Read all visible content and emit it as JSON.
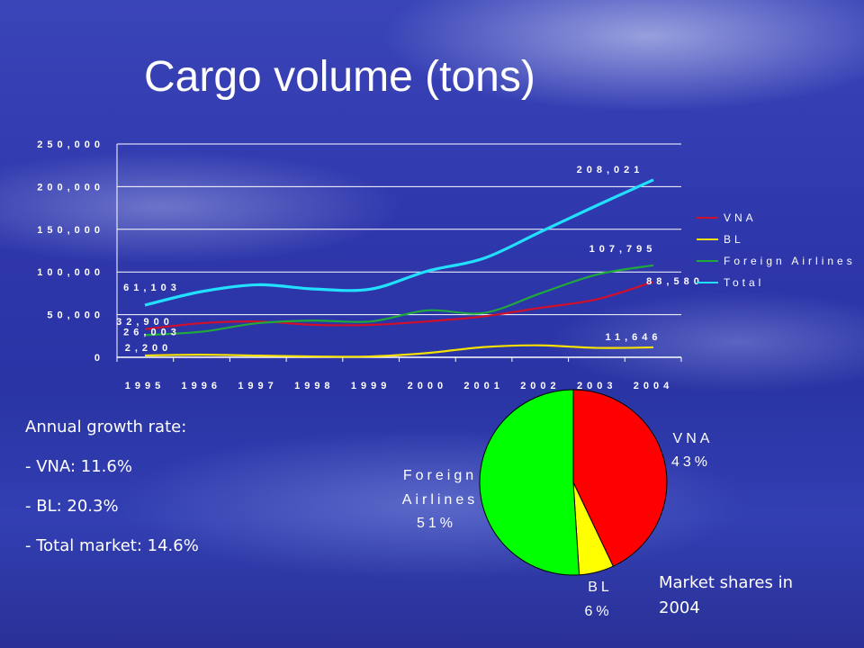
{
  "slide": {
    "title": "Cargo volume (tons)",
    "growth_title": "Annual growth rate:",
    "growth_items": [
      "- VNA: 11.6%",
      "- BL: 20.3%",
      "- Total market: 14.6%"
    ],
    "pie_caption": "Market shares in 2004"
  },
  "chart_data": [
    {
      "type": "line",
      "title": "",
      "xlabel": "",
      "ylabel": "",
      "ylim": [
        0,
        250000
      ],
      "yticks": [
        "250,000",
        "200,000",
        "150,000",
        "100,000",
        "50,000",
        "0"
      ],
      "categories": [
        "1995",
        "1996",
        "1997",
        "1998",
        "1999",
        "2000",
        "2001",
        "2002",
        "2003",
        "2004"
      ],
      "grid": true,
      "legend_position": "right",
      "series": [
        {
          "name": "VNA",
          "color": "#d0102a",
          "values": [
            32900,
            40000,
            42000,
            38000,
            38000,
            42000,
            48000,
            58000,
            68000,
            88580
          ]
        },
        {
          "name": "BL",
          "color": "#f5e000",
          "values": [
            2200,
            3000,
            2000,
            1000,
            1000,
            5000,
            12000,
            14000,
            11000,
            11646
          ]
        },
        {
          "name": "Foreign Airlines",
          "color": "#1faa3a",
          "values": [
            26003,
            30000,
            40000,
            43000,
            42000,
            55000,
            52000,
            75000,
            97000,
            107795
          ]
        },
        {
          "name": "Total",
          "color": "#22e0ff",
          "values": [
            61103,
            77000,
            85000,
            80000,
            80000,
            101000,
            116000,
            147000,
            178000,
            208021
          ]
        }
      ],
      "data_labels": [
        {
          "series": "VNA",
          "category": "1995",
          "text": "32,900"
        },
        {
          "series": "VNA",
          "category": "2004",
          "text": "88,580"
        },
        {
          "series": "BL",
          "category": "1995",
          "text": "2,200"
        },
        {
          "series": "BL",
          "category": "2004",
          "text": "11,646"
        },
        {
          "series": "Foreign Airlines",
          "category": "1995",
          "text": "26,003"
        },
        {
          "series": "Foreign Airlines",
          "category": "2004",
          "text": "107,795"
        },
        {
          "series": "Total",
          "category": "1995",
          "text": "61,103"
        },
        {
          "series": "Total",
          "category": "2004",
          "text": "208,021"
        }
      ]
    },
    {
      "type": "pie",
      "title": "",
      "slices": [
        {
          "name": "VNA",
          "label_lines": [
            "VNA",
            "43%"
          ],
          "value": 43,
          "color": "#ff0000"
        },
        {
          "name": "BL",
          "label_lines": [
            "BL",
            "6%"
          ],
          "value": 6,
          "color": "#ffff00"
        },
        {
          "name": "Foreign Airlines",
          "label_lines": [
            "Foreign",
            "Airlines",
            "51%"
          ],
          "value": 51,
          "color": "#00ff00"
        }
      ]
    }
  ]
}
